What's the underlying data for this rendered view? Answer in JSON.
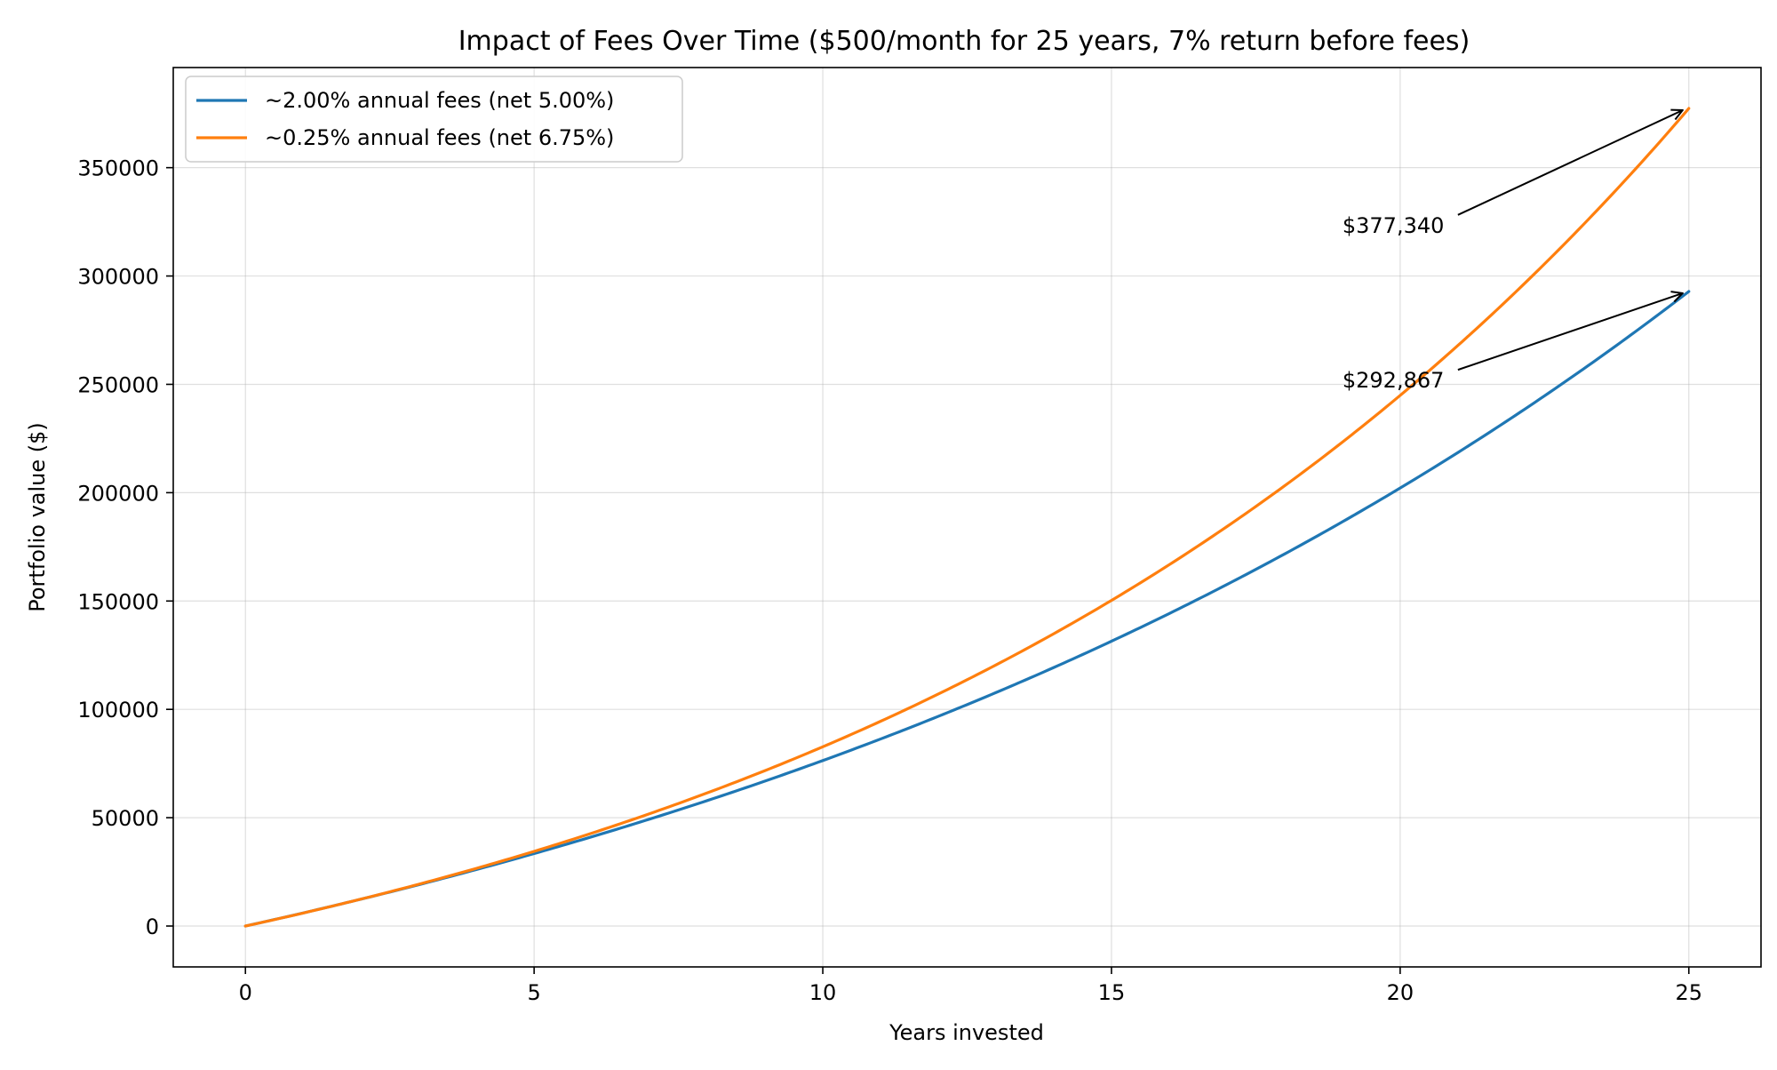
{
  "chart_data": {
    "type": "line",
    "title": "Impact of Fees Over Time ($500/month for 25 years, 7% return before fees)",
    "xlabel": "Years invested",
    "ylabel": "Portfolio value ($)",
    "xlim": [
      -1.25,
      26.25
    ],
    "ylim": [
      -18867,
      396207
    ],
    "xticks": [
      0,
      5,
      10,
      15,
      20,
      25
    ],
    "yticks": [
      0,
      50000,
      100000,
      150000,
      200000,
      250000,
      300000,
      350000
    ],
    "grid": true,
    "legend_position": "upper-left",
    "series": [
      {
        "name": "~2.00% annual fees (net 5.00%)",
        "color": "#1f77b4",
        "net_rate_percent": 5.0,
        "monthly_contribution": 500,
        "x": [
          0,
          2.5,
          5,
          7.5,
          10,
          12.5,
          15,
          17.5,
          20,
          22.5,
          25
        ],
        "values": [
          0,
          15800,
          34000,
          54800,
          77600,
          103500,
          133000,
          166000,
          203000,
          245000,
          292867
        ]
      },
      {
        "name": "~0.25% annual fees (net 6.75%)",
        "color": "#ff7f0e",
        "net_rate_percent": 6.75,
        "monthly_contribution": 500,
        "x": [
          0,
          2.5,
          5,
          7.5,
          10,
          12.5,
          15,
          17.5,
          20,
          22.5,
          25
        ],
        "values": [
          0,
          16300,
          35800,
          58500,
          85000,
          116000,
          152500,
          195000,
          245500,
          305000,
          377340
        ]
      }
    ],
    "annotations": [
      {
        "text": "$377,340",
        "x": 25,
        "y": 377340,
        "text_x": 19,
        "text_y": 320000
      },
      {
        "text": "$292,867",
        "x": 25,
        "y": 292867,
        "text_x": 19,
        "text_y": 248500
      }
    ]
  }
}
